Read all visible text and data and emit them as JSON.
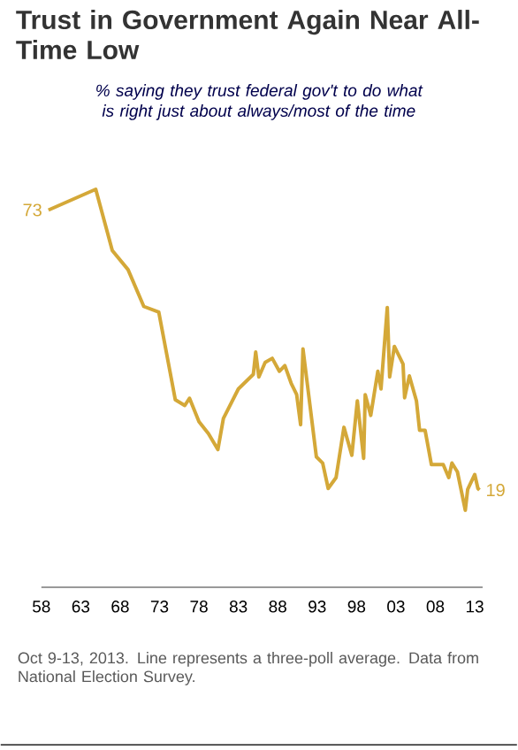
{
  "chart_data": {
    "type": "line",
    "title": "Trust in Government Again Near All-Time Low",
    "subtitle": "% saying they trust federal gov't to do what is right just about always/most of the time",
    "annotations": [
      "Oct 9-13, 2013. Line represents a three-poll average. Data from National Election Survey."
    ],
    "x": [
      1958.9,
      1964.9,
      1967.0,
      1969.0,
      1971.0,
      1972.9,
      1975.0,
      1976.2,
      1976.8,
      1978.0,
      1979.2,
      1980.4,
      1981.1,
      1983.0,
      1984.9,
      1985.2,
      1985.6,
      1986.4,
      1987.3,
      1988.2,
      1988.9,
      1989.7,
      1990.4,
      1990.9,
      1991.2,
      1992.9,
      1993.7,
      1994.4,
      1995.4,
      1996.4,
      1997.4,
      1998.1,
      1998.9,
      1999.1,
      1999.8,
      2000.7,
      2001.1,
      2001.9,
      2002.2,
      2002.8,
      2003.9,
      2004.1,
      2004.7,
      2005.6,
      2006.0,
      2006.7,
      2007.5,
      2009.0,
      2009.7,
      2010.1,
      2010.8,
      2011.8,
      2012.1,
      2013.0,
      2013.4,
      2013.6
    ],
    "values": [
      73,
      77,
      65.2,
      61.5,
      54.4,
      53.3,
      36.4,
      35.3,
      36.7,
      32.2,
      29.9,
      26.8,
      32.8,
      38.5,
      41.3,
      45.6,
      40.8,
      43.6,
      44.4,
      41.9,
      43,
      39.6,
      37.4,
      31.6,
      46.2,
      25.4,
      24.2,
      19.3,
      21.4,
      31.1,
      25.7,
      36.2,
      25.1,
      37.4,
      33.4,
      41.9,
      38.5,
      54.2,
      40.8,
      46.7,
      43.3,
      36.8,
      41,
      36.2,
      30.5,
      30.5,
      23.9,
      23.9,
      21.4,
      24.2,
      22.5,
      15.1,
      19.1,
      22,
      19.3,
      19
    ],
    "value_labels": [
      "73",
      null,
      null,
      null,
      null,
      null,
      null,
      null,
      null,
      null,
      null,
      null,
      null,
      null,
      null,
      null,
      null,
      null,
      null,
      null,
      null,
      null,
      null,
      null,
      null,
      null,
      null,
      null,
      null,
      null,
      null,
      null,
      null,
      null,
      null,
      null,
      null,
      null,
      null,
      null,
      null,
      null,
      null,
      null,
      null,
      null,
      null,
      null,
      null,
      null,
      null,
      null,
      null,
      null,
      null,
      "19"
    ],
    "color": "#d4a838",
    "xlim": [
      1958,
      2014
    ],
    "xticks": [
      {
        "value": 1958,
        "label": "58"
      },
      {
        "value": 1963,
        "label": "63"
      },
      {
        "value": 1968,
        "label": "68"
      },
      {
        "value": 1973,
        "label": "73"
      },
      {
        "value": 1978,
        "label": "78"
      },
      {
        "value": 1983,
        "label": "83"
      },
      {
        "value": 1988,
        "label": "88"
      },
      {
        "value": 1993,
        "label": "93"
      },
      {
        "value": 1998,
        "label": "98"
      },
      {
        "value": 2003,
        "label": "03"
      },
      {
        "value": 2008,
        "label": "08"
      },
      {
        "value": 2013,
        "label": "13"
      }
    ],
    "tick_labels": "x"
  }
}
